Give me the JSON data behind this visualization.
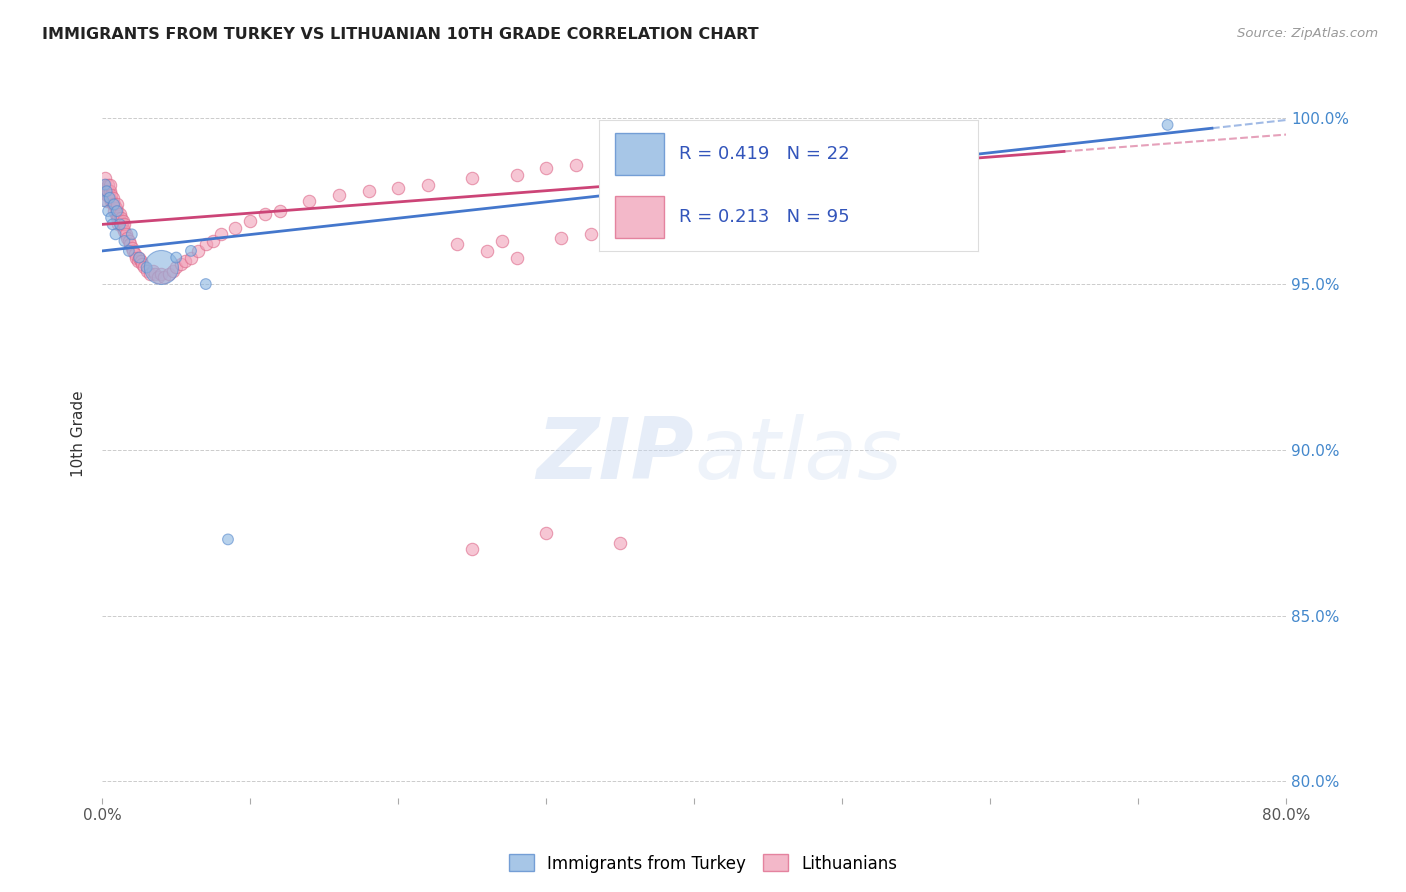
{
  "title": "IMMIGRANTS FROM TURKEY VS LITHUANIAN 10TH GRADE CORRELATION CHART",
  "source": "Source: ZipAtlas.com",
  "ylabel": "10th Grade",
  "xlim": [
    0.0,
    0.8
  ],
  "ylim": [
    0.795,
    1.015
  ],
  "blue_R": 0.419,
  "blue_N": 22,
  "pink_R": 0.213,
  "pink_N": 95,
  "blue_color": "#8ab4e0",
  "pink_color": "#f0a0b8",
  "blue_edge_color": "#5588cc",
  "pink_edge_color": "#dd6688",
  "blue_line_color": "#4477cc",
  "pink_line_color": "#cc4477",
  "legend_text_color": "#3355BB",
  "right_axis_color": "#4488CC",
  "background_color": "#FFFFFF",
  "blue_scatter_x": [
    0.001,
    0.002,
    0.003,
    0.004,
    0.005,
    0.006,
    0.007,
    0.008,
    0.009,
    0.01,
    0.012,
    0.015,
    0.018,
    0.02,
    0.025,
    0.03,
    0.04,
    0.05,
    0.06,
    0.07,
    0.085,
    0.72
  ],
  "blue_scatter_y": [
    0.975,
    0.98,
    0.978,
    0.972,
    0.976,
    0.97,
    0.968,
    0.974,
    0.965,
    0.972,
    0.968,
    0.963,
    0.96,
    0.965,
    0.958,
    0.955,
    0.955,
    0.958,
    0.96,
    0.95,
    0.873,
    0.998
  ],
  "blue_scatter_sizes": [
    60,
    60,
    60,
    60,
    60,
    60,
    60,
    60,
    60,
    60,
    60,
    60,
    60,
    60,
    60,
    60,
    600,
    60,
    60,
    60,
    60,
    60
  ],
  "pink_scatter_x": [
    0.001,
    0.002,
    0.002,
    0.003,
    0.003,
    0.004,
    0.004,
    0.005,
    0.005,
    0.005,
    0.006,
    0.006,
    0.007,
    0.007,
    0.008,
    0.008,
    0.009,
    0.009,
    0.01,
    0.01,
    0.01,
    0.011,
    0.011,
    0.012,
    0.012,
    0.013,
    0.013,
    0.014,
    0.014,
    0.015,
    0.015,
    0.016,
    0.017,
    0.018,
    0.019,
    0.02,
    0.021,
    0.022,
    0.023,
    0.024,
    0.025,
    0.026,
    0.027,
    0.028,
    0.03,
    0.032,
    0.034,
    0.036,
    0.038,
    0.04,
    0.042,
    0.045,
    0.048,
    0.05,
    0.053,
    0.056,
    0.06,
    0.065,
    0.07,
    0.075,
    0.08,
    0.09,
    0.1,
    0.11,
    0.12,
    0.14,
    0.16,
    0.18,
    0.2,
    0.22,
    0.25,
    0.28,
    0.3,
    0.32,
    0.35,
    0.38,
    0.4,
    0.42,
    0.45,
    0.48,
    0.25,
    0.3,
    0.35,
    0.28,
    0.26,
    0.24,
    0.27,
    0.31,
    0.33,
    0.36,
    0.38,
    0.41,
    0.44,
    0.46,
    0.49
  ],
  "pink_scatter_y": [
    0.978,
    0.98,
    0.982,
    0.975,
    0.977,
    0.978,
    0.98,
    0.976,
    0.978,
    0.98,
    0.975,
    0.977,
    0.974,
    0.976,
    0.972,
    0.974,
    0.971,
    0.973,
    0.97,
    0.972,
    0.974,
    0.97,
    0.968,
    0.969,
    0.971,
    0.968,
    0.97,
    0.967,
    0.969,
    0.966,
    0.968,
    0.965,
    0.964,
    0.963,
    0.962,
    0.961,
    0.96,
    0.959,
    0.958,
    0.957,
    0.958,
    0.957,
    0.956,
    0.955,
    0.954,
    0.953,
    0.954,
    0.953,
    0.952,
    0.953,
    0.952,
    0.953,
    0.954,
    0.955,
    0.956,
    0.957,
    0.958,
    0.96,
    0.962,
    0.963,
    0.965,
    0.967,
    0.969,
    0.971,
    0.972,
    0.975,
    0.977,
    0.978,
    0.979,
    0.98,
    0.982,
    0.983,
    0.985,
    0.986,
    0.987,
    0.988,
    0.989,
    0.99,
    0.991,
    0.992,
    0.87,
    0.875,
    0.872,
    0.958,
    0.96,
    0.962,
    0.963,
    0.964,
    0.965,
    0.966,
    0.967,
    0.968,
    0.969,
    0.97,
    0.971
  ]
}
